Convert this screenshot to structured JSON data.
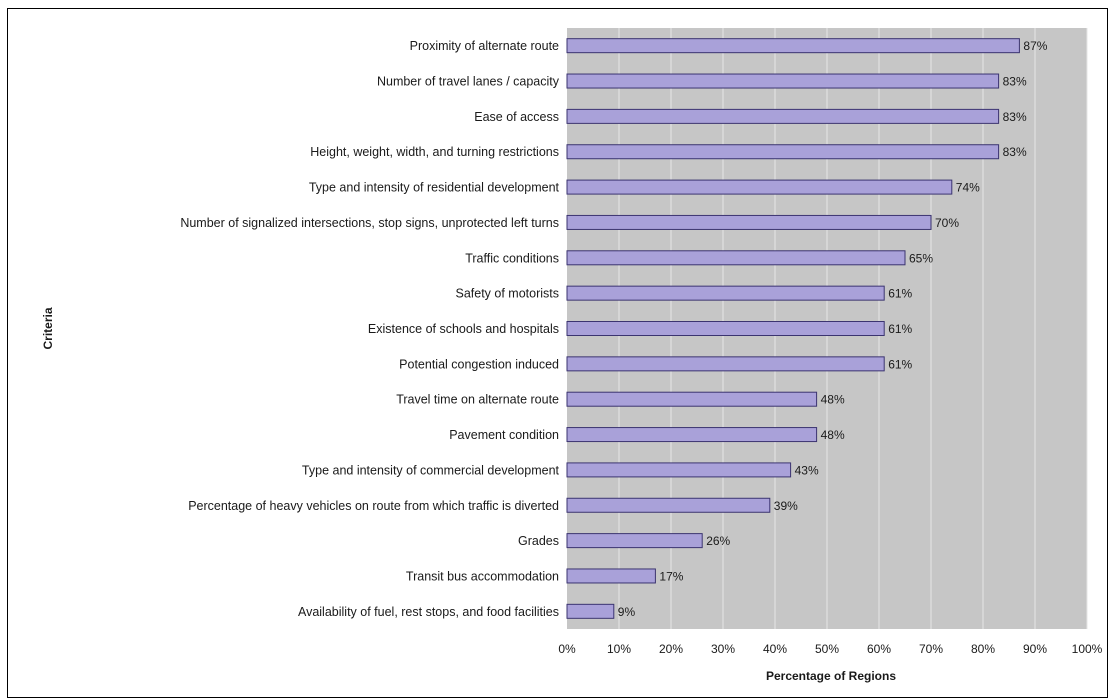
{
  "chart_data": {
    "type": "bar",
    "orientation": "horizontal",
    "categories": [
      "Proximity of alternate route",
      "Number of travel lanes / capacity",
      "Ease of access",
      "Height, weight, width, and turning restrictions",
      "Type and intensity of residential development",
      "Number of signalized intersections, stop signs, unprotected left turns",
      "Traffic conditions",
      "Safety of motorists",
      "Existence of schools and hospitals",
      "Potential congestion induced",
      "Travel time on alternate route",
      "Pavement condition",
      "Type and intensity of commercial development",
      "Percentage of heavy vehicles on route from which traffic is diverted",
      "Grades",
      "Transit bus accommodation",
      "Availability of fuel, rest stops, and food facilities"
    ],
    "values": [
      87,
      83,
      83,
      83,
      74,
      70,
      65,
      61,
      61,
      61,
      48,
      48,
      43,
      39,
      26,
      17,
      9
    ],
    "value_labels": [
      "87%",
      "83%",
      "83%",
      "83%",
      "74%",
      "70%",
      "65%",
      "61%",
      "61%",
      "61%",
      "48%",
      "48%",
      "43%",
      "39%",
      "26%",
      "17%",
      "9%"
    ],
    "xlabel": "Percentage of Regions",
    "ylabel": "Criteria",
    "xlim": [
      0,
      100
    ],
    "xticks": [
      "0%",
      "10%",
      "20%",
      "30%",
      "40%",
      "50%",
      "60%",
      "70%",
      "80%",
      "90%",
      "100%"
    ],
    "grid": "vertical",
    "colors": {
      "bar_fill": "#a9a1d9",
      "bar_stroke": "#3b3470",
      "plot_background": "#c6c6c6",
      "gridline": "#e6e6e6"
    }
  }
}
